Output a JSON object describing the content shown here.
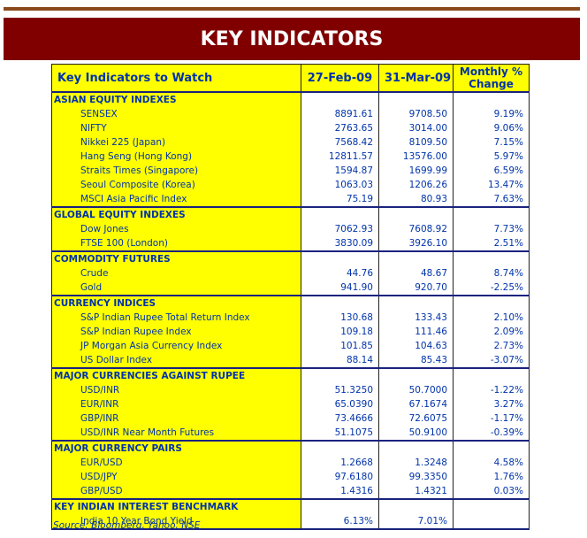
{
  "header": {
    "title": "KEY INDICATORS"
  },
  "table": {
    "columns": [
      "Key Indicators to Watch",
      "27-Feb-09",
      "31-Mar-09",
      "Monthly % Change"
    ],
    "sections": [
      {
        "title": "ASIAN EQUITY INDEXES",
        "rows": [
          [
            "SENSEX",
            "8891.61",
            "9708.50",
            "9.19%"
          ],
          [
            "NIFTY",
            "2763.65",
            "3014.00",
            "9.06%"
          ],
          [
            "Nikkei 225 (Japan)",
            "7568.42",
            "8109.50",
            "7.15%"
          ],
          [
            "Hang Seng (Hong Kong)",
            "12811.57",
            "13576.00",
            "5.97%"
          ],
          [
            "Straits Times (Singapore)",
            "1594.87",
            "1699.99",
            "6.59%"
          ],
          [
            "Seoul Composite (Korea)",
            "1063.03",
            "1206.26",
            "13.47%"
          ],
          [
            "MSCI Asia Pacific Index",
            "75.19",
            "80.93",
            "7.63%"
          ]
        ]
      },
      {
        "title": "GLOBAL EQUITY INDEXES",
        "rows": [
          [
            "Dow Jones",
            "7062.93",
            "7608.92",
            "7.73%"
          ],
          [
            "FTSE 100 (London)",
            "3830.09",
            "3926.10",
            "2.51%"
          ]
        ]
      },
      {
        "title": "COMMODITY FUTURES",
        "rows": [
          [
            "Crude",
            "44.76",
            "48.67",
            "8.74%"
          ],
          [
            "Gold",
            "941.90",
            "920.70",
            "-2.25%"
          ]
        ]
      },
      {
        "title": "CURRENCY INDICES",
        "rows": [
          [
            "S&P Indian Rupee Total Return Index",
            "130.68",
            "133.43",
            "2.10%"
          ],
          [
            "S&P Indian Rupee Index",
            "109.18",
            "111.46",
            "2.09%"
          ],
          [
            "JP Morgan Asia Currency Index",
            "101.85",
            "104.63",
            "2.73%"
          ],
          [
            "US Dollar Index",
            "88.14",
            "85.43",
            "-3.07%"
          ]
        ]
      },
      {
        "title": "MAJOR CURRENCIES AGAINST RUPEE",
        "rows": [
          [
            "USD/INR",
            "51.3250",
            "50.7000",
            "-1.22%"
          ],
          [
            "EUR/INR",
            "65.0390",
            "67.1674",
            "3.27%"
          ],
          [
            "GBP/INR",
            "73.4666",
            "72.6075",
            "-1.17%"
          ],
          [
            "USD/INR Near Month Futures",
            "51.1075",
            "50.9100",
            "-0.39%"
          ]
        ]
      },
      {
        "title": "MAJOR CURRENCY PAIRS",
        "rows": [
          [
            "EUR/USD",
            "1.2668",
            "1.3248",
            "4.58%"
          ],
          [
            "USD/JPY",
            "97.6180",
            "99.3350",
            "1.76%"
          ],
          [
            "GBP/USD",
            "1.4316",
            "1.4321",
            "0.03%"
          ]
        ]
      },
      {
        "title": "KEY INDIAN INTEREST BENCHMARK",
        "rows": [
          [
            "India 10 Year Bond Yield",
            "6.13%",
            "7.01%"
          ]
        ]
      }
    ]
  },
  "source": "Source: Bloomberg, Yahoo, NSE"
}
